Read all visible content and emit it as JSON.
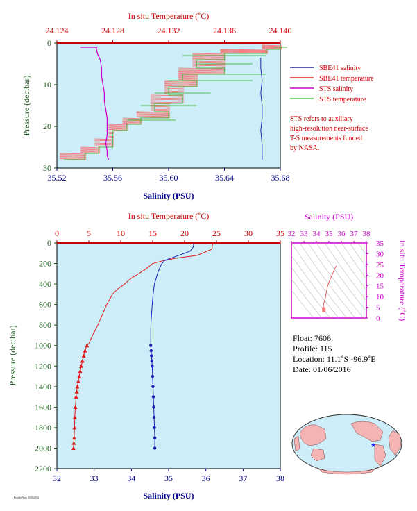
{
  "colors": {
    "sbe_salinity": "#1f1fb4",
    "sbe_temperature": "#e01b1b",
    "sts_salinity": "#cc00cc",
    "sts_temperature": "#4cbf4c",
    "sts_temperature_pink": "#f08080",
    "plot_bg": "#cdeef8",
    "temp_axis": "#cc0000",
    "sal_axis": "#00008b",
    "pres_axis": "#1f5a1f",
    "ts_axis": "#cc00cc"
  },
  "legend": {
    "items": [
      {
        "label": "SBE41 salinity",
        "color": "#1f1fb4"
      },
      {
        "label": "SBE41 temperature",
        "color": "#e01b1b"
      },
      {
        "label": "STS salinity",
        "color": "#cc00cc"
      },
      {
        "label": "STS temperature",
        "color": "#4cbf4c"
      }
    ],
    "note": [
      "STS refers to auxiliary",
      "high-resolution near-surface",
      "T-S measurements funded",
      "by NASA."
    ]
  },
  "info": {
    "float": "Float:  7606",
    "profile": "Profile:  115",
    "location": "Location:  11.1˚S  -96.9˚E",
    "date": "Date:  01/06/2016"
  },
  "footer_mark": "ProfilePlots 03302016",
  "chart_data": [
    {
      "type": "line",
      "id": "near-surface",
      "top_axis_title": "In situ Temperature (˚C)",
      "bottom_axis_title": "Salinity (PSU)",
      "left_axis_title": "Pressure (decibar)",
      "temp_ticks": [
        "24.124",
        "24.128",
        "24.132",
        "24.136",
        "24.140"
      ],
      "sal_ticks": [
        "35.52",
        "35.56",
        "35.60",
        "35.64",
        "35.68"
      ],
      "pres_ticks": [
        "0",
        "10",
        "20",
        "30"
      ],
      "temp_lim": [
        24.124,
        24.14
      ],
      "sal_lim": [
        35.52,
        35.68
      ],
      "pres_lim": [
        0,
        30
      ],
      "grid": false,
      "series": [
        {
          "name": "STS salinity",
          "x": [
            35.548,
            35.549,
            35.551,
            35.552,
            35.552,
            35.553,
            35.554,
            35.554,
            35.555,
            35.556,
            35.556,
            35.556,
            35.555,
            35.556,
            35.556,
            35.557
          ],
          "pressure": [
            1.0,
            2.5,
            4.0,
            6.0,
            8.0,
            10.0,
            12.0,
            14.0,
            16.0,
            18.0,
            20.0,
            22.0,
            24.0,
            26.0,
            27.0,
            28.0
          ]
        },
        {
          "name": "STS temperature",
          "x": [
            24.14,
            24.139,
            24.136,
            24.134,
            24.136,
            24.133,
            24.134,
            24.132,
            24.133,
            24.131,
            24.132,
            24.13,
            24.129,
            24.128,
            24.128,
            24.127,
            24.126,
            24.1245
          ],
          "pressure": [
            0.5,
            1.5,
            2.5,
            4.0,
            6.0,
            7.5,
            9.0,
            10.5,
            12.5,
            14.5,
            16.5,
            18.0,
            19.5,
            21.0,
            23.0,
            25.0,
            26.5,
            28.0
          ]
        },
        {
          "name": "SBE41 salinity",
          "x": [
            35.666,
            35.666,
            35.667,
            35.666,
            35.667,
            35.667,
            35.666,
            35.667,
            35.667
          ],
          "pressure": [
            3.5,
            6.0,
            9.0,
            12.0,
            15.0,
            18.0,
            21.0,
            24.5,
            28.0
          ]
        }
      ]
    },
    {
      "type": "line",
      "id": "full-profile",
      "top_axis_title": "In situ Temperature (˚C)",
      "bottom_axis_title": "Salinity (PSU)",
      "left_axis_title": "Pressure (decibar)",
      "temp_ticks": [
        "0",
        "5",
        "10",
        "15",
        "20",
        "25",
        "30",
        "35"
      ],
      "sal_ticks": [
        "32",
        "33",
        "34",
        "35",
        "36",
        "37",
        "38"
      ],
      "pres_ticks": [
        "0",
        "200",
        "400",
        "600",
        "800",
        "1000",
        "1200",
        "1400",
        "1600",
        "1800",
        "2000",
        "2200"
      ],
      "temp_lim": [
        0,
        35
      ],
      "sal_lim": [
        32,
        38
      ],
      "pres_lim": [
        0,
        2200
      ],
      "grid": false,
      "series": [
        {
          "name": "SBE41 temperature",
          "x": [
            24.4,
            24.3,
            22.0,
            18.5,
            16.5,
            15.0,
            14.0,
            12.8,
            11.5,
            10.6,
            9.5,
            8.7,
            7.8,
            7.1,
            6.4,
            5.6,
            5.0,
            4.7
          ],
          "pressure": [
            0,
            60,
            120,
            150,
            175,
            200,
            250,
            300,
            350,
            400,
            450,
            500,
            600,
            700,
            800,
            900,
            980,
            1000
          ]
        },
        {
          "name": "SBE41 temperature (deep)",
          "x": [
            4.7,
            4.4,
            4.2,
            4.0,
            3.8,
            3.65,
            3.5,
            3.35,
            3.2,
            3.1,
            3.0,
            2.9,
            2.8,
            2.75,
            2.7,
            2.65,
            2.6
          ],
          "pressure": [
            1000,
            1050,
            1100,
            1150,
            1200,
            1250,
            1300,
            1350,
            1400,
            1450,
            1500,
            1600,
            1700,
            1800,
            1900,
            1950,
            2000
          ]
        },
        {
          "name": "SBE41 salinity",
          "x": [
            35.68,
            35.66,
            35.58,
            35.2,
            34.9,
            34.82,
            34.75,
            34.7,
            34.66,
            34.62,
            34.6,
            34.57,
            34.55,
            34.53,
            34.52,
            34.52
          ],
          "pressure": [
            0,
            40,
            80,
            130,
            170,
            200,
            250,
            300,
            350,
            400,
            450,
            550,
            650,
            750,
            850,
            1000
          ]
        },
        {
          "name": "SBE41 salinity (deep)",
          "x": [
            34.52,
            34.53,
            34.54,
            34.55,
            34.56,
            34.57,
            34.58,
            34.59,
            34.6,
            34.61,
            34.62,
            34.63,
            34.63
          ],
          "pressure": [
            1000,
            1050,
            1100,
            1150,
            1200,
            1300,
            1400,
            1500,
            1600,
            1700,
            1800,
            1900,
            2000
          ]
        }
      ]
    },
    {
      "type": "scatter",
      "id": "ts-diagram",
      "top_axis_title": "Salinity (PSU)",
      "right_axis_title": "In situ Temperature (˚C)",
      "sal_ticks": [
        "32",
        "33",
        "34",
        "35",
        "36",
        "37",
        "38"
      ],
      "temp_ticks": [
        "0",
        "5",
        "10",
        "15",
        "20",
        "25",
        "30",
        "35"
      ],
      "sal_lim": [
        32,
        38
      ],
      "temp_lim": [
        0,
        35
      ],
      "series": [
        {
          "name": "SBE41 T-S",
          "x": [
            35.6,
            35.4,
            35.1,
            34.9,
            34.8,
            34.7,
            34.6,
            34.55,
            34.55,
            34.6
          ],
          "y": [
            24.4,
            22.0,
            18.0,
            15.0,
            12.0,
            9.0,
            7.0,
            5.0,
            4.0,
            2.7
          ]
        }
      ]
    }
  ]
}
